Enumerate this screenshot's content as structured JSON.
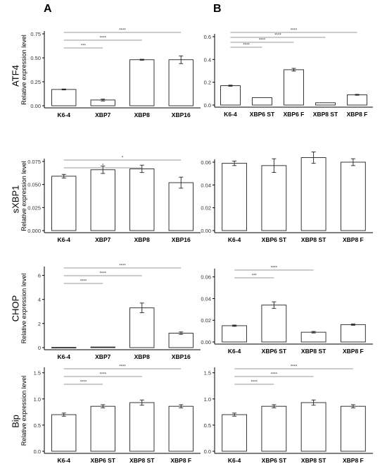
{
  "panels": {
    "left": "A",
    "right": "B"
  },
  "rows": [
    "ATF4",
    "sXBP1",
    "CHOP",
    "Bip"
  ],
  "ylabel": "Relative expression level",
  "chart_data": [
    {
      "type": "bar",
      "row": "ATF4",
      "col": "A",
      "ylabel": "Relative expression level",
      "ylim": [
        0,
        0.75
      ],
      "yticks": [
        "0.00",
        "0.25",
        "0.50",
        "0.75"
      ],
      "categories": [
        "K6-4",
        "XBP7",
        "XBP8",
        "XBP16"
      ],
      "values": [
        0.17,
        0.06,
        0.48,
        0.48
      ],
      "errors": [
        0.005,
        0.01,
        0.005,
        0.04
      ],
      "brackets": [
        {
          "from": 0,
          "to": 1,
          "label": "***"
        },
        {
          "from": 0,
          "to": 2,
          "label": "****"
        },
        {
          "from": 0,
          "to": 3,
          "label": "****"
        }
      ]
    },
    {
      "type": "bar",
      "row": "ATF4",
      "col": "B",
      "ylabel": "",
      "ylim": [
        0,
        0.6
      ],
      "yticks": [
        "0.0",
        "0.2",
        "0.4",
        "0.6"
      ],
      "categories": [
        "K6-4",
        "XBP6 ST",
        "XBP6 F",
        "XBP8 ST",
        "XBP8 F"
      ],
      "values": [
        0.17,
        0.065,
        0.31,
        0.02,
        0.09
      ],
      "errors": [
        0.005,
        0,
        0.012,
        0,
        0.004
      ],
      "brackets": [
        {
          "from": 0,
          "to": 1,
          "label": "****"
        },
        {
          "from": 0,
          "to": 2,
          "label": "****"
        },
        {
          "from": 0,
          "to": 3,
          "label": "****"
        },
        {
          "from": 0,
          "to": 4,
          "label": "****"
        }
      ]
    },
    {
      "type": "bar",
      "row": "sXBP1",
      "col": "A",
      "ylabel": "Relative expression level",
      "ylim": [
        0,
        0.075
      ],
      "yticks": [
        "0.000",
        "0.025",
        "0.050",
        "0.075"
      ],
      "categories": [
        "K6-4",
        "XBP7",
        "XBP8",
        "XBP16"
      ],
      "values": [
        0.059,
        0.066,
        0.067,
        0.052
      ],
      "errors": [
        0.002,
        0.004,
        0.004,
        0.006
      ],
      "brackets": [
        {
          "from": 0,
          "to": 2,
          "label": "*"
        },
        {
          "from": 0,
          "to": 3,
          "label": "*"
        }
      ]
    },
    {
      "type": "bar",
      "row": "sXBP1",
      "col": "B",
      "ylabel": "",
      "ylim": [
        0,
        0.06
      ],
      "yticks": [
        "0.00",
        "0.02",
        "0.04",
        "0.06"
      ],
      "categories": [
        "K6-4",
        "XBP6 ST",
        "XBP8 ST",
        "XBP8 F"
      ],
      "values": [
        0.059,
        0.057,
        0.064,
        0.06
      ],
      "errors": [
        0.002,
        0.006,
        0.005,
        0.003
      ],
      "brackets": []
    },
    {
      "type": "bar",
      "row": "CHOP",
      "col": "A",
      "ylabel": "Relative expression level",
      "ylim": [
        0,
        6.5
      ],
      "yticks": [
        "0",
        "2",
        "4",
        "6"
      ],
      "categories": [
        "K6-4",
        "XBP7",
        "XBP8",
        "XBP16"
      ],
      "values": [
        0.02,
        0.05,
        3.3,
        1.2
      ],
      "errors": [
        0,
        0,
        0.4,
        0.1
      ],
      "brackets": [
        {
          "from": 0,
          "to": 1,
          "label": "****"
        },
        {
          "from": 0,
          "to": 2,
          "label": "****"
        },
        {
          "from": 0,
          "to": 3,
          "label": "****"
        }
      ]
    },
    {
      "type": "bar",
      "row": "CHOP",
      "col": "B",
      "ylabel": "",
      "ylim": [
        0,
        0.065
      ],
      "yticks": [
        "0.00",
        "0.02",
        "0.04",
        "0.06"
      ],
      "categories": [
        "K6-4",
        "XBP6 ST",
        "XBP8 ST",
        "XBP8 F"
      ],
      "values": [
        0.015,
        0.034,
        0.009,
        0.016
      ],
      "errors": [
        0.0006,
        0.003,
        0.0007,
        0.0006
      ],
      "brackets": [
        {
          "from": 0,
          "to": 1,
          "label": "***"
        },
        {
          "from": 0,
          "to": 2,
          "label": "****"
        }
      ]
    },
    {
      "type": "bar",
      "row": "Bip",
      "col": "A",
      "ylabel": "Relative expression level",
      "ylim": [
        0,
        1.55
      ],
      "yticks": [
        "0.0",
        "0.5",
        "1.0",
        "1.5"
      ],
      "categories": [
        "K6-4",
        "XBP6 ST",
        "XBP8 ST",
        "XBP8 F"
      ],
      "values": [
        0.7,
        0.86,
        0.93,
        0.86
      ],
      "errors": [
        0.03,
        0.03,
        0.05,
        0.03
      ],
      "brackets": [
        {
          "from": 0,
          "to": 1,
          "label": "****"
        },
        {
          "from": 0,
          "to": 2,
          "label": "****"
        },
        {
          "from": 0,
          "to": 3,
          "label": "****"
        }
      ]
    },
    {
      "type": "bar",
      "row": "Bip",
      "col": "B",
      "ylabel": "",
      "ylim": [
        0,
        1.55
      ],
      "yticks": [
        "0.0",
        "0.5",
        "1.0",
        "1.5"
      ],
      "categories": [
        "K6-4",
        "XBP6 ST",
        "XBP8 ST",
        "XBP8 F"
      ],
      "values": [
        0.7,
        0.86,
        0.93,
        0.86
      ],
      "errors": [
        0.03,
        0.03,
        0.05,
        0.03
      ],
      "brackets": [
        {
          "from": 0,
          "to": 1,
          "label": "****"
        },
        {
          "from": 0,
          "to": 2,
          "label": "****"
        },
        {
          "from": 0,
          "to": 3,
          "label": "****"
        }
      ]
    }
  ]
}
